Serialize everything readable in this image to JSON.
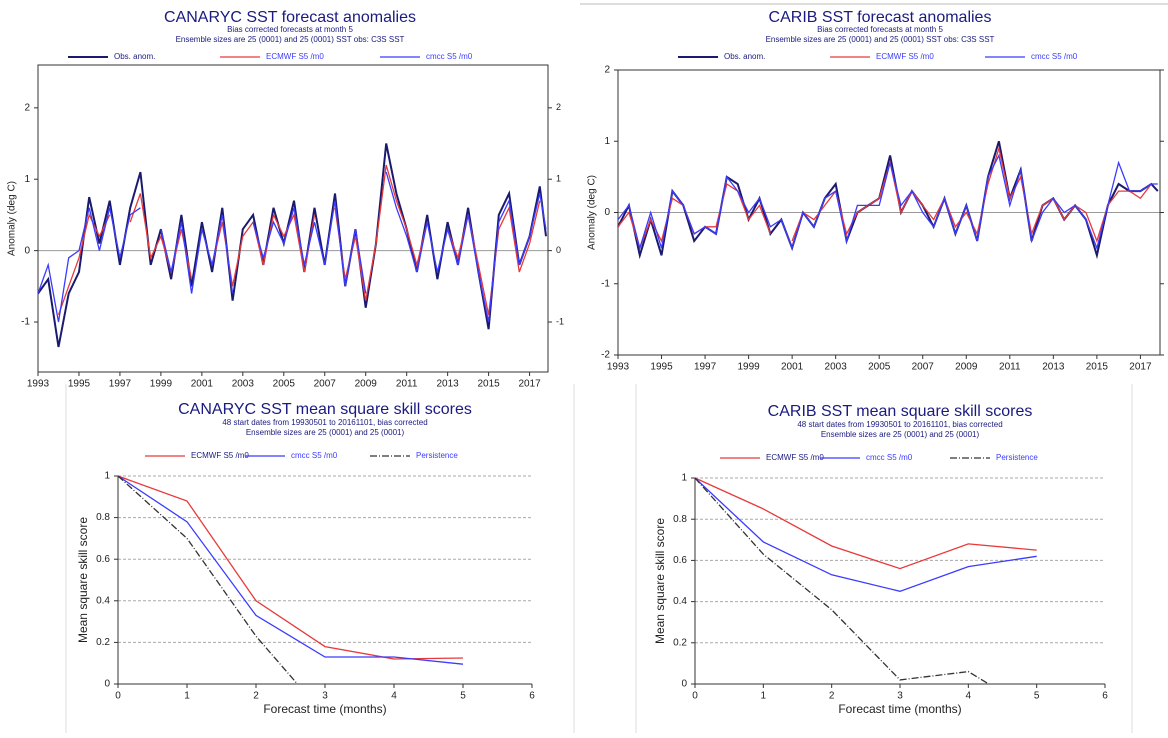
{
  "chart_data": [
    {
      "type": "line",
      "title": "CANARYC SST forecast anomalies",
      "subtitle": [
        "Bias corrected forecasts at month  5",
        "Ensemble sizes are 25 (0001)  and 25 (0001)     SST obs: C3S SST"
      ],
      "y_label": "Anomaly (deg C)",
      "x": [
        1993,
        1993.5,
        1994,
        1994.5,
        1995,
        1995.5,
        1996,
        1996.5,
        1997,
        1997.5,
        1998,
        1998.5,
        1999,
        1999.5,
        2000,
        2000.5,
        2001,
        2001.5,
        2002,
        2002.5,
        2003,
        2003.5,
        2004,
        2004.5,
        2005,
        2005.5,
        2006,
        2006.5,
        2007,
        2007.5,
        2008,
        2008.5,
        2009,
        2009.5,
        2010,
        2010.5,
        2011,
        2011.5,
        2012,
        2012.5,
        2013,
        2013.5,
        2014,
        2014.5,
        2015,
        2015.5,
        2016,
        2016.5,
        2017,
        2017.5,
        2017.8
      ],
      "xlim": [
        1993,
        2017.9
      ],
      "xticks": [
        1993,
        1995,
        1997,
        1999,
        2001,
        2003,
        2005,
        2007,
        2009,
        2011,
        2013,
        2015,
        2017
      ],
      "ylim": [
        -1.7,
        2.6
      ],
      "yticks": [
        -1,
        0,
        1,
        2
      ],
      "series": [
        {
          "name": "Obs. anom.",
          "color": "#1a1a6e",
          "values": [
            -0.6,
            -0.4,
            -1.35,
            -0.6,
            -0.3,
            0.75,
            0.1,
            0.7,
            -0.2,
            0.6,
            1.1,
            -0.2,
            0.3,
            -0.4,
            0.5,
            -0.5,
            0.4,
            -0.3,
            0.6,
            -0.7,
            0.3,
            0.5,
            -0.2,
            0.6,
            0.1,
            0.7,
            -0.3,
            0.6,
            -0.2,
            0.8,
            -0.5,
            0.3,
            -0.8,
            0.1,
            1.5,
            0.8,
            0.3,
            -0.3,
            0.5,
            -0.4,
            0.4,
            -0.2,
            0.6,
            -0.3,
            -1.1,
            0.5,
            0.8,
            -0.2,
            0.2,
            0.9,
            0.2
          ]
        },
        {
          "name": "ECMWF S5  /m0",
          "color": "#e8393a",
          "values": [
            -0.7,
            null,
            -0.9,
            -0.5,
            -0.1,
            0.5,
            0.2,
            0.5,
            null,
            0.4,
            0.8,
            -0.1,
            0.2,
            -0.3,
            0.3,
            -0.4,
            null,
            -0.2,
            0.4,
            -0.5,
            0.2,
            0.4,
            -0.2,
            0.5,
            0.2,
            0.5,
            -0.3,
            0.5,
            null,
            0.6,
            -0.4,
            0.2,
            -0.7,
            0.1,
            1.2,
            0.7,
            0.3,
            -0.2,
            0.4,
            null,
            0.3,
            -0.1,
            0.5,
            -0.2,
            -0.9,
            0.3,
            0.6,
            -0.3,
            0.1,
            0.7,
            null
          ]
        },
        {
          "name": "cmcc S5  /m0",
          "color": "#3b3bff",
          "values": [
            -0.6,
            -0.2,
            -1.0,
            -0.1,
            0.0,
            0.6,
            0.0,
            0.6,
            -0.1,
            0.5,
            0.6,
            null,
            0.3,
            -0.3,
            0.4,
            -0.6,
            0.3,
            -0.2,
            0.5,
            -0.6,
            null,
            0.4,
            -0.1,
            0.4,
            0.1,
            0.6,
            -0.2,
            0.4,
            -0.2,
            0.7,
            -0.5,
            0.3,
            -0.6,
            null,
            1.1,
            0.6,
            0.2,
            -0.3,
            0.4,
            -0.3,
            0.3,
            -0.2,
            0.5,
            -0.3,
            -1.0,
            0.4,
            0.7,
            -0.2,
            0.2,
            0.8,
            0.3
          ]
        }
      ]
    },
    {
      "type": "line",
      "title": "CARIB SST forecast anomalies",
      "subtitle": [
        "Bias corrected forecasts at month  5",
        "Ensemble sizes are 25 (0001)  and 25 (0001)     SST obs: C3S SST"
      ],
      "y_label": "Anomaly (deg C)",
      "x": [
        1993,
        1993.5,
        1994,
        1994.5,
        1995,
        1995.5,
        1996,
        1996.5,
        1997,
        1997.5,
        1998,
        1998.5,
        1999,
        1999.5,
        2000,
        2000.5,
        2001,
        2001.5,
        2002,
        2002.5,
        2003,
        2003.5,
        2004,
        2004.5,
        2005,
        2005.5,
        2006,
        2006.5,
        2007,
        2007.5,
        2008,
        2008.5,
        2009,
        2009.5,
        2010,
        2010.5,
        2011,
        2011.5,
        2012,
        2012.5,
        2013,
        2013.5,
        2014,
        2014.5,
        2015,
        2015.5,
        2016,
        2016.5,
        2017,
        2017.5,
        2017.8
      ],
      "xlim": [
        1993,
        2017.9
      ],
      "xticks": [
        1993,
        1995,
        1997,
        1999,
        2001,
        2003,
        2005,
        2007,
        2009,
        2011,
        2013,
        2015,
        2017
      ],
      "ylim": [
        -2,
        2
      ],
      "yticks": [
        -2,
        -1,
        0,
        1,
        2
      ],
      "series": [
        {
          "name": "Obs. anom.",
          "color": "#1a1a6e",
          "values": [
            -0.2,
            0.1,
            -0.6,
            -0.1,
            -0.6,
            0.3,
            0.1,
            -0.4,
            -0.2,
            -0.3,
            0.5,
            0.4,
            -0.1,
            0.2,
            -0.3,
            -0.1,
            -0.5,
            0.0,
            -0.2,
            0.2,
            0.4,
            -0.4,
            0.0,
            0.1,
            0.2,
            0.8,
            0.0,
            0.3,
            0.1,
            -0.2,
            0.2,
            -0.3,
            0.1,
            -0.4,
            0.5,
            1.0,
            0.2,
            0.6,
            -0.4,
            0.1,
            0.2,
            -0.1,
            0.1,
            -0.1,
            -0.6,
            0.1,
            0.4,
            0.3,
            0.3,
            0.4,
            0.3
          ]
        },
        {
          "name": "ECMWF S5  /m0",
          "color": "#e8393a",
          "values": [
            -0.2,
            0.0,
            -0.5,
            -0.1,
            -0.4,
            0.2,
            0.1,
            -0.3,
            -0.2,
            -0.2,
            0.4,
            0.3,
            -0.1,
            0.1,
            -0.3,
            null,
            -0.4,
            0.0,
            -0.1,
            0.1,
            0.3,
            -0.3,
            0.0,
            0.1,
            0.2,
            0.7,
            0.0,
            0.3,
            0.1,
            -0.1,
            0.2,
            -0.2,
            0.0,
            -0.3,
            0.4,
            0.9,
            0.2,
            0.5,
            -0.3,
            0.1,
            0.2,
            -0.1,
            0.1,
            0.0,
            -0.4,
            0.1,
            0.3,
            0.3,
            0.2,
            0.4,
            null
          ]
        },
        {
          "name": "cmcc S5  /m0",
          "color": "#3b3bff",
          "values": [
            -0.1,
            0.1,
            -0.5,
            0.0,
            -0.5,
            0.3,
            0.1,
            -0.3,
            -0.2,
            -0.3,
            0.5,
            0.3,
            0.0,
            0.2,
            -0.2,
            -0.1,
            -0.5,
            0.0,
            -0.2,
            0.2,
            0.3,
            -0.4,
            0.1,
            0.1,
            0.1,
            0.7,
            0.1,
            0.3,
            0.0,
            -0.2,
            0.2,
            -0.3,
            0.1,
            -0.4,
            0.5,
            0.8,
            0.1,
            0.6,
            -0.4,
            0.0,
            0.2,
            0.0,
            0.1,
            -0.1,
            -0.5,
            0.1,
            0.7,
            0.3,
            0.3,
            0.4,
            0.4
          ]
        }
      ]
    },
    {
      "type": "line",
      "title": "CANARYC SST mean square skill scores",
      "subtitle": [
        "48 start dates from 19930501 to 20161101, bias corrected",
        "Ensemble sizes are 25 (0001)  and 25 (0001)"
      ],
      "x_label": "Forecast time (months)",
      "y_label": "Mean square skill score",
      "x": [
        0,
        1,
        2,
        3,
        4,
        5
      ],
      "xlim": [
        0,
        6
      ],
      "xticks": [
        0,
        1,
        2,
        3,
        4,
        5,
        6
      ],
      "ylim": [
        0,
        1
      ],
      "yticks": [
        0,
        0.2,
        0.4,
        0.6,
        0.8,
        1
      ],
      "grid": true,
      "series": [
        {
          "name": "ECMWF S5  /m0",
          "color": "#e8393a",
          "values": [
            1,
            0.88,
            0.4,
            0.18,
            0.12,
            0.125
          ]
        },
        {
          "name": "cmcc S5  /m0",
          "color": "#3b3bff",
          "values": [
            1,
            0.78,
            0.33,
            0.13,
            0.13,
            0.095
          ]
        },
        {
          "name": "Persistence",
          "color": "#333333",
          "style": "dash-dot",
          "x": [
            0,
            1,
            2,
            2.6
          ],
          "values": [
            1,
            0.7,
            0.23,
            0
          ]
        }
      ]
    },
    {
      "type": "line",
      "title": "CARIB SST mean square skill scores",
      "subtitle": [
        "48 start dates from 19930501 to 20161101, bias corrected",
        "Ensemble sizes are 25 (0001)  and 25 (0001)"
      ],
      "x_label": "Forecast time (months)",
      "y_label": "Mean square skill score",
      "x": [
        0,
        1,
        2,
        3,
        4,
        5
      ],
      "xlim": [
        0,
        6
      ],
      "xticks": [
        0,
        1,
        2,
        3,
        4,
        5,
        6
      ],
      "ylim": [
        0,
        1
      ],
      "yticks": [
        0,
        0.2,
        0.4,
        0.6,
        0.8,
        1
      ],
      "grid": true,
      "series": [
        {
          "name": "ECMWF S5  /m0",
          "color": "#e8393a",
          "values": [
            1,
            0.85,
            0.67,
            0.56,
            0.68,
            0.65
          ]
        },
        {
          "name": "cmcc S5  /m0",
          "color": "#3b3bff",
          "values": [
            1,
            0.69,
            0.53,
            0.45,
            0.57,
            0.62
          ]
        },
        {
          "name": "Persistence",
          "color": "#333333",
          "style": "dash-dot",
          "x": [
            0,
            1,
            2,
            3,
            4,
            4.3
          ],
          "values": [
            1,
            0.63,
            0.36,
            0.02,
            0.06,
            0
          ]
        }
      ]
    }
  ]
}
